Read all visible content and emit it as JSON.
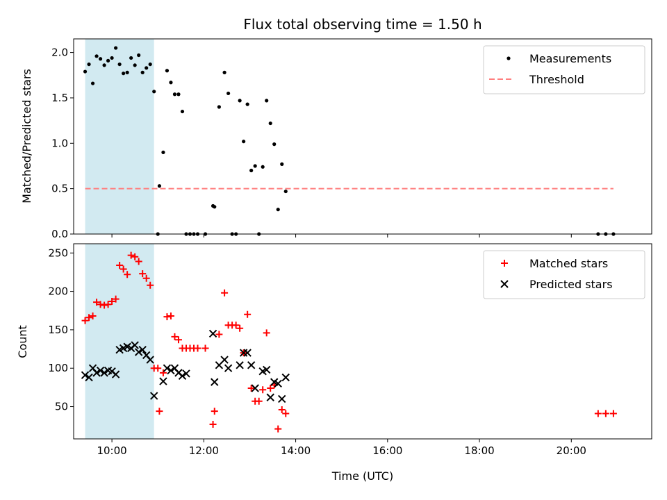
{
  "chart_data": [
    {
      "type": "scatter",
      "title": "Flux total observing time = 1.50 h",
      "xlabel": "",
      "ylabel": "Matched/Predicted stars",
      "xlim": [
        "09:10",
        "21:45"
      ],
      "ylim": [
        0,
        2.15
      ],
      "x_tick_labels": [],
      "x_ticks": [
        "10:00",
        "12:00",
        "14:00",
        "16:00",
        "18:00",
        "20:00"
      ],
      "y_ticks": [
        "0.0",
        "0.5",
        "1.0",
        "1.5",
        "2.0"
      ],
      "y_tick_values": [
        0,
        0.5,
        1.0,
        1.5,
        2.0
      ],
      "highlight_span": [
        "09:25",
        "10:55"
      ],
      "highlight_color": "#add8e6",
      "legend": "top-right",
      "series": [
        {
          "name": "Measurements",
          "marker": "dot",
          "color": "#000000",
          "points": [
            [
              "09:25",
              1.79
            ],
            [
              "09:30",
              1.87
            ],
            [
              "09:35",
              1.66
            ],
            [
              "09:40",
              1.96
            ],
            [
              "09:45",
              1.93
            ],
            [
              "09:50",
              1.86
            ],
            [
              "09:55",
              1.91
            ],
            [
              "10:00",
              1.94
            ],
            [
              "10:05",
              2.05
            ],
            [
              "10:10",
              1.87
            ],
            [
              "10:15",
              1.77
            ],
            [
              "10:20",
              1.78
            ],
            [
              "10:25",
              1.94
            ],
            [
              "10:30",
              1.86
            ],
            [
              "10:35",
              1.97
            ],
            [
              "10:40",
              1.78
            ],
            [
              "10:45",
              1.83
            ],
            [
              "10:50",
              1.87
            ],
            [
              "10:55",
              1.57
            ],
            [
              "11:00",
              0.0
            ],
            [
              "11:02",
              0.53
            ],
            [
              "11:07",
              0.9
            ],
            [
              "11:12",
              1.8
            ],
            [
              "11:17",
              1.67
            ],
            [
              "11:22",
              1.54
            ],
            [
              "11:27",
              1.54
            ],
            [
              "11:32",
              1.35
            ],
            [
              "11:37",
              0.0
            ],
            [
              "11:42",
              0.0
            ],
            [
              "11:47",
              0.0
            ],
            [
              "11:52",
              0.0
            ],
            [
              "12:02",
              0.0
            ],
            [
              "12:12",
              0.31
            ],
            [
              "12:14",
              0.3
            ],
            [
              "12:20",
              1.4
            ],
            [
              "12:27",
              1.78
            ],
            [
              "12:32",
              1.55
            ],
            [
              "12:37",
              0.0
            ],
            [
              "12:42",
              0.0
            ],
            [
              "12:47",
              1.47
            ],
            [
              "12:52",
              1.02
            ],
            [
              "12:57",
              1.43
            ],
            [
              "13:02",
              0.7
            ],
            [
              "13:07",
              0.75
            ],
            [
              "13:12",
              0.0
            ],
            [
              "13:17",
              0.74
            ],
            [
              "13:22",
              1.47
            ],
            [
              "13:27",
              1.22
            ],
            [
              "13:32",
              0.99
            ],
            [
              "13:37",
              0.27
            ],
            [
              "13:42",
              0.77
            ],
            [
              "13:47",
              0.47
            ],
            [
              "20:35",
              0.0
            ],
            [
              "20:45",
              0.0
            ],
            [
              "20:55",
              0.0
            ]
          ]
        },
        {
          "name": "Threshold",
          "marker": "dashed-line",
          "color": "#ff7f7f",
          "points": [
            [
              "09:25",
              0.5
            ],
            [
              "20:55",
              0.5
            ]
          ]
        }
      ]
    },
    {
      "type": "scatter",
      "title": "",
      "xlabel": "Time (UTC)",
      "ylabel": "Count",
      "xlim": [
        "09:10",
        "21:45"
      ],
      "ylim": [
        8,
        262
      ],
      "x_ticks": [
        "10:00",
        "12:00",
        "14:00",
        "16:00",
        "18:00",
        "20:00"
      ],
      "y_ticks": [
        "50",
        "100",
        "150",
        "200",
        "250"
      ],
      "y_tick_values": [
        50,
        100,
        150,
        200,
        250
      ],
      "highlight_span": [
        "09:25",
        "10:55"
      ],
      "highlight_color": "#add8e6",
      "legend": "top-right",
      "series": [
        {
          "name": "Matched stars",
          "marker": "plus",
          "color": "#ff0000",
          "points": [
            [
              "09:25",
              162
            ],
            [
              "09:30",
              166
            ],
            [
              "09:35",
              168
            ],
            [
              "09:40",
              186
            ],
            [
              "09:45",
              183
            ],
            [
              "09:50",
              182
            ],
            [
              "09:55",
              183
            ],
            [
              "10:00",
              187
            ],
            [
              "10:05",
              190
            ],
            [
              "10:10",
              234
            ],
            [
              "10:15",
              229
            ],
            [
              "10:20",
              222
            ],
            [
              "10:25",
              247
            ],
            [
              "10:30",
              245
            ],
            [
              "10:35",
              239
            ],
            [
              "10:40",
              223
            ],
            [
              "10:45",
              217
            ],
            [
              "10:50",
              208
            ],
            [
              "10:55",
              100
            ],
            [
              "11:00",
              100
            ],
            [
              "11:02",
              44
            ],
            [
              "11:07",
              94
            ],
            [
              "11:12",
              167
            ],
            [
              "11:17",
              168
            ],
            [
              "11:22",
              141
            ],
            [
              "11:27",
              137
            ],
            [
              "11:32",
              126
            ],
            [
              "11:37",
              126
            ],
            [
              "11:42",
              126
            ],
            [
              "11:47",
              126
            ],
            [
              "11:52",
              126
            ],
            [
              "12:02",
              126
            ],
            [
              "12:12",
              27
            ],
            [
              "12:14",
              44
            ],
            [
              "12:20",
              144
            ],
            [
              "12:27",
              198
            ],
            [
              "12:32",
              156
            ],
            [
              "12:37",
              156
            ],
            [
              "12:42",
              156
            ],
            [
              "12:47",
              152
            ],
            [
              "12:52",
              120
            ],
            [
              "12:57",
              170
            ],
            [
              "13:02",
              74
            ],
            [
              "13:07",
              57
            ],
            [
              "13:12",
              57
            ],
            [
              "13:17",
              72
            ],
            [
              "13:22",
              146
            ],
            [
              "13:27",
              74
            ],
            [
              "13:32",
              78
            ],
            [
              "13:37",
              21
            ],
            [
              "13:42",
              46
            ],
            [
              "13:47",
              41
            ],
            [
              "20:35",
              41
            ],
            [
              "20:45",
              41
            ],
            [
              "20:55",
              41
            ]
          ]
        },
        {
          "name": "Predicted stars",
          "marker": "x",
          "color": "#000000",
          "points": [
            [
              "09:25",
              91
            ],
            [
              "09:30",
              88
            ],
            [
              "09:35",
              100
            ],
            [
              "09:40",
              94
            ],
            [
              "09:45",
              97
            ],
            [
              "09:50",
              94
            ],
            [
              "09:55",
              97
            ],
            [
              "10:00",
              96
            ],
            [
              "10:05",
              92
            ],
            [
              "10:10",
              124
            ],
            [
              "10:15",
              126
            ],
            [
              "10:20",
              128
            ],
            [
              "10:25",
              126
            ],
            [
              "10:30",
              130
            ],
            [
              "10:35",
              121
            ],
            [
              "10:40",
              124
            ],
            [
              "10:45",
              117
            ],
            [
              "10:50",
              111
            ],
            [
              "10:55",
              64
            ],
            [
              "11:07",
              83
            ],
            [
              "11:12",
              100
            ],
            [
              "11:17",
              97
            ],
            [
              "11:22",
              100
            ],
            [
              "11:27",
              94
            ],
            [
              "11:32",
              90
            ],
            [
              "11:37",
              93
            ],
            [
              "12:12",
              145
            ],
            [
              "12:14",
              82
            ],
            [
              "12:20",
              104
            ],
            [
              "12:27",
              111
            ],
            [
              "12:32",
              100
            ],
            [
              "12:47",
              104
            ],
            [
              "12:52",
              120
            ],
            [
              "12:57",
              120
            ],
            [
              "13:02",
              104
            ],
            [
              "13:07",
              74
            ],
            [
              "13:17",
              96
            ],
            [
              "13:22",
              98
            ],
            [
              "13:27",
              62
            ],
            [
              "13:32",
              82
            ],
            [
              "13:37",
              80
            ],
            [
              "13:42",
              60
            ],
            [
              "13:47",
              88
            ]
          ]
        }
      ]
    }
  ]
}
